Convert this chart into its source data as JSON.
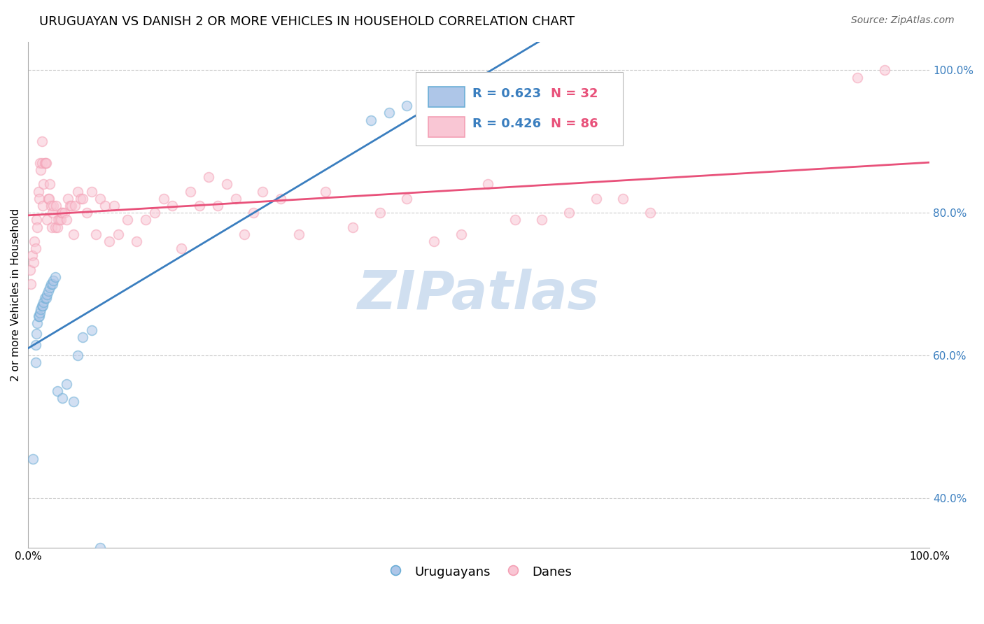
{
  "title": "URUGUAYAN VS DANISH 2 OR MORE VEHICLES IN HOUSEHOLD CORRELATION CHART",
  "source": "Source: ZipAtlas.com",
  "ylabel": "2 or more Vehicles in Household",
  "watermark": "ZIPatlas",
  "xlim": [
    0.0,
    1.0
  ],
  "ylim": [
    0.33,
    1.04
  ],
  "yticks": [
    0.4,
    0.6,
    0.8,
    1.0
  ],
  "ytick_labels": [
    "40.0%",
    "60.0%",
    "80.0%",
    "100.0%"
  ],
  "legend_r_uruguayan": "R = 0.623",
  "legend_n_uruguayan": "N = 32",
  "legend_r_danes": "R = 0.426",
  "legend_n_danes": "N = 86",
  "uruguayan_color": "#6baed6",
  "uruguayan_color_fill": "#aec6e8",
  "danes_color": "#f4a0b5",
  "danes_color_fill": "#f9c6d4",
  "uruguayan_line_color": "#3a7ebf",
  "danes_line_color": "#e8517a",
  "uruguayan_x": [
    0.005,
    0.008,
    0.008,
    0.009,
    0.01,
    0.011,
    0.012,
    0.013,
    0.014,
    0.015,
    0.016,
    0.017,
    0.018,
    0.02,
    0.021,
    0.022,
    0.024,
    0.025,
    0.027,
    0.028,
    0.03,
    0.032,
    0.038,
    0.042,
    0.05,
    0.055,
    0.06,
    0.07,
    0.08,
    0.38,
    0.4,
    0.42
  ],
  "uruguayan_y": [
    0.455,
    0.59,
    0.615,
    0.63,
    0.645,
    0.655,
    0.655,
    0.66,
    0.665,
    0.67,
    0.67,
    0.675,
    0.68,
    0.68,
    0.685,
    0.69,
    0.695,
    0.7,
    0.7,
    0.705,
    0.71,
    0.55,
    0.54,
    0.56,
    0.535,
    0.6,
    0.625,
    0.635,
    0.33,
    0.93,
    0.94,
    0.95
  ],
  "danes_x": [
    0.002,
    0.003,
    0.004,
    0.006,
    0.007,
    0.008,
    0.009,
    0.01,
    0.011,
    0.012,
    0.013,
    0.014,
    0.015,
    0.015,
    0.016,
    0.017,
    0.018,
    0.019,
    0.02,
    0.021,
    0.022,
    0.023,
    0.024,
    0.025,
    0.026,
    0.027,
    0.028,
    0.03,
    0.031,
    0.032,
    0.033,
    0.035,
    0.036,
    0.037,
    0.038,
    0.04,
    0.042,
    0.044,
    0.046,
    0.048,
    0.05,
    0.052,
    0.055,
    0.058,
    0.06,
    0.065,
    0.07,
    0.075,
    0.08,
    0.085,
    0.09,
    0.095,
    0.1,
    0.11,
    0.12,
    0.13,
    0.14,
    0.15,
    0.16,
    0.17,
    0.18,
    0.19,
    0.2,
    0.21,
    0.22,
    0.23,
    0.24,
    0.25,
    0.26,
    0.28,
    0.3,
    0.33,
    0.36,
    0.39,
    0.42,
    0.45,
    0.48,
    0.51,
    0.54,
    0.57,
    0.6,
    0.63,
    0.66,
    0.69,
    0.92,
    0.95
  ],
  "danes_y": [
    0.72,
    0.7,
    0.74,
    0.73,
    0.76,
    0.75,
    0.79,
    0.78,
    0.83,
    0.82,
    0.87,
    0.86,
    0.9,
    0.87,
    0.81,
    0.84,
    0.87,
    0.87,
    0.87,
    0.79,
    0.82,
    0.82,
    0.84,
    0.81,
    0.78,
    0.8,
    0.81,
    0.78,
    0.81,
    0.78,
    0.79,
    0.79,
    0.79,
    0.8,
    0.8,
    0.8,
    0.79,
    0.82,
    0.81,
    0.81,
    0.77,
    0.81,
    0.83,
    0.82,
    0.82,
    0.8,
    0.83,
    0.77,
    0.82,
    0.81,
    0.76,
    0.81,
    0.77,
    0.79,
    0.76,
    0.79,
    0.8,
    0.82,
    0.81,
    0.75,
    0.83,
    0.81,
    0.85,
    0.81,
    0.84,
    0.82,
    0.77,
    0.8,
    0.83,
    0.82,
    0.77,
    0.83,
    0.78,
    0.8,
    0.82,
    0.76,
    0.77,
    0.84,
    0.79,
    0.79,
    0.8,
    0.82,
    0.82,
    0.8,
    0.99,
    1.0
  ],
  "background_color": "#ffffff",
  "grid_color": "#cccccc",
  "title_fontsize": 13,
  "source_fontsize": 10,
  "axis_label_fontsize": 11,
  "tick_fontsize": 11,
  "legend_fontsize": 13,
  "watermark_fontsize": 55,
  "watermark_color": "#d0dff0",
  "marker_size": 100,
  "marker_alpha": 0.55,
  "line_width": 2.0,
  "uruguayan_line_x": [
    0.0,
    1.0
  ],
  "uruguayan_line_y": [
    0.5,
    1.0
  ],
  "danes_line_x": [
    0.0,
    1.0
  ],
  "danes_line_y": [
    0.725,
    1.0
  ]
}
